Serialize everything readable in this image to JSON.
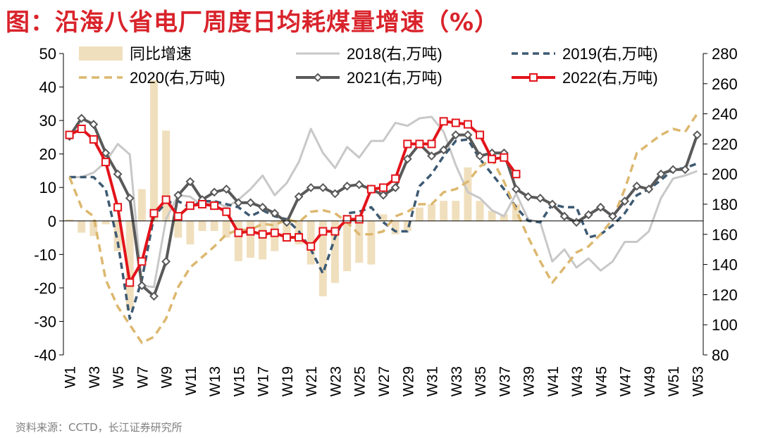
{
  "title": "图：沿海八省电厂周度日均耗煤量增速（%）",
  "source": "资料来源：CCTD，长江证券研究所",
  "colors": {
    "bar": "#f0dfbd",
    "s2018": "#c8c8c8",
    "s2019": "#3d5a73",
    "s2020": "#dcb86f",
    "s2021": "#595959",
    "s2022": "#e3141b"
  },
  "chart_data": {
    "type": "bar+line",
    "categories": [
      "W1",
      "W2",
      "W3",
      "W4",
      "W5",
      "W6",
      "W7",
      "W8",
      "W9",
      "W10",
      "W11",
      "W12",
      "W13",
      "W14",
      "W15",
      "W16",
      "W17",
      "W18",
      "W19",
      "W20",
      "W21",
      "W22",
      "W23",
      "W24",
      "W25",
      "W26",
      "W27",
      "W28",
      "W29",
      "W30",
      "W31",
      "W32",
      "W33",
      "W34",
      "W35",
      "W36",
      "W37",
      "W38",
      "W39",
      "W40",
      "W41",
      "W42",
      "W43",
      "W44",
      "W45",
      "W46",
      "W47",
      "W48",
      "W49",
      "W50",
      "W51",
      "W52",
      "W53"
    ],
    "x_tick_labels": [
      "W1",
      "W3",
      "W5",
      "W7",
      "W9",
      "W11",
      "W13",
      "W15",
      "W17",
      "W19",
      "W21",
      "W23",
      "W25",
      "W27",
      "W29",
      "W31",
      "W33",
      "W35",
      "W37",
      "W39",
      "W41",
      "W43",
      "W45",
      "W47",
      "W49",
      "W51",
      "W53"
    ],
    "y_left": {
      "min": -40,
      "max": 50,
      "step": 10
    },
    "y_right": {
      "min": 80,
      "max": 280,
      "step": 20
    },
    "legend": [
      "同比增速",
      "2018(右,万吨)",
      "2019(右,万吨)",
      "2020(右,万吨)",
      "2021(右,万吨)",
      "2022(右,万吨)"
    ],
    "bars": {
      "name": "同比增速",
      "axis": "left",
      "values": [
        0.5,
        -3.5,
        -4.5,
        -1,
        -9,
        -26.5,
        9.5,
        42,
        27,
        -5,
        -7,
        -3,
        -3,
        -5,
        -12,
        -11,
        -11.5,
        -9,
        -6,
        -7,
        -13,
        -22.5,
        -18.5,
        -15,
        -12.5,
        -13,
        2,
        -4,
        -3,
        4,
        5,
        6,
        6,
        16,
        6,
        3,
        2,
        5,
        null,
        null,
        null,
        null,
        null,
        null,
        null,
        null,
        null,
        null,
        null,
        null,
        null,
        null,
        null
      ]
    },
    "series": [
      {
        "name": "2018(右,万吨)",
        "axis": "right",
        "values": [
          198,
          198,
          201,
          208,
          220,
          213,
          126,
          125,
          170,
          186,
          185,
          179,
          182,
          178,
          183,
          190,
          199,
          186,
          194,
          208,
          230,
          214,
          204,
          218,
          211,
          222,
          222,
          234,
          232,
          237,
          238,
          228,
          206,
          188,
          184,
          176,
          172,
          187,
          170,
          168,
          142,
          150,
          138,
          144,
          136,
          142,
          155,
          155,
          162,
          184,
          197,
          199,
          202
        ]
      },
      {
        "name": "2019(右,万吨)",
        "axis": "right",
        "values": [
          198,
          198,
          198,
          190,
          155,
          104,
          130,
          172,
          181,
          182,
          178,
          182,
          182,
          180,
          178,
          172,
          176,
          172,
          170,
          162,
          150,
          134,
          158,
          174,
          175,
          178,
          168,
          162,
          162,
          192,
          200,
          212,
          222,
          223,
          210,
          200,
          190,
          178,
          169,
          168,
          180,
          178,
          178,
          158,
          160,
          166,
          174,
          186,
          190,
          196,
          203,
          204,
          207
        ]
      },
      {
        "name": "2020(右,万吨)",
        "axis": "right",
        "values": [
          198,
          178,
          172,
          130,
          112,
          100,
          88,
          92,
          104,
          125,
          138,
          145,
          152,
          160,
          163,
          163,
          167,
          166,
          170,
          168,
          175,
          176,
          174,
          168,
          160,
          160,
          162,
          172,
          175,
          180,
          180,
          188,
          190,
          195,
          205,
          210,
          195,
          176,
          158,
          142,
          128,
          138,
          148,
          152,
          160,
          170,
          190,
          214,
          220,
          226,
          230,
          228,
          240
        ]
      },
      {
        "name": "2021(右,万吨)",
        "axis": "right",
        "values": [
          225,
          237,
          233,
          214,
          200,
          184,
          126,
          119,
          142,
          186,
          195,
          183,
          188,
          190,
          181,
          181,
          178,
          174,
          168,
          185,
          191,
          191,
          187,
          192,
          193,
          190,
          186,
          191,
          210,
          220,
          212,
          216,
          226,
          226,
          212,
          214,
          214,
          190,
          185,
          184,
          180,
          172,
          168,
          173,
          178,
          172,
          182,
          192,
          190,
          200,
          203,
          203,
          226
        ]
      },
      {
        "name": "2022(右,万吨)",
        "axis": "right",
        "values": [
          226,
          230,
          223,
          208,
          178,
          128,
          142,
          174,
          183,
          172,
          179,
          180,
          179,
          175,
          161,
          162,
          160,
          161,
          158,
          158,
          152,
          162,
          162,
          170,
          170,
          190,
          191,
          197,
          220,
          220,
          220,
          235,
          234,
          233,
          226,
          210,
          211,
          200,
          null,
          null,
          null,
          null,
          null,
          null,
          null,
          null,
          null,
          null,
          null,
          null,
          null,
          null,
          null
        ]
      }
    ]
  }
}
